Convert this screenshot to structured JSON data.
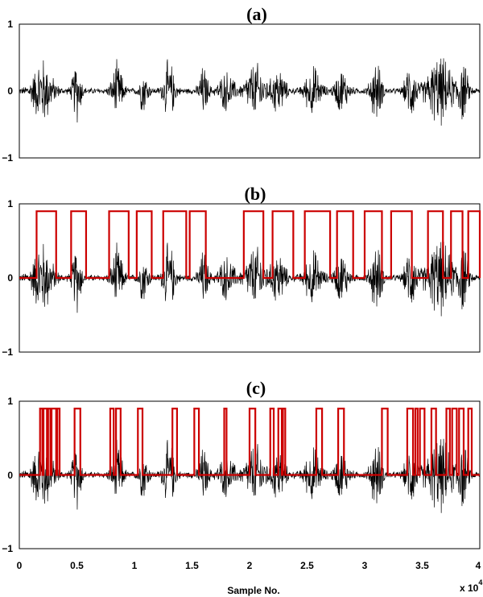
{
  "chart_data": [
    {
      "type": "line",
      "title": "(a)",
      "ylim": [
        -1,
        1
      ],
      "xlim": [
        0,
        40000
      ],
      "yticks": [
        -1,
        0,
        1
      ],
      "series": [
        {
          "color": "#000000",
          "kind": "audio-waveform",
          "noise_floor": 0.05,
          "bursts": [
            {
              "center": 2000,
              "width": 900,
              "amp": 0.55
            },
            {
              "center": 5000,
              "width": 400,
              "amp": 0.5
            },
            {
              "center": 8500,
              "width": 500,
              "amp": 0.45
            },
            {
              "center": 10800,
              "width": 400,
              "amp": 0.35
            },
            {
              "center": 13000,
              "width": 500,
              "amp": 0.5
            },
            {
              "center": 16000,
              "width": 400,
              "amp": 0.4
            },
            {
              "center": 18000,
              "width": 700,
              "amp": 0.3
            },
            {
              "center": 20500,
              "width": 900,
              "amp": 0.45
            },
            {
              "center": 22500,
              "width": 600,
              "amp": 0.4
            },
            {
              "center": 25500,
              "width": 700,
              "amp": 0.4
            },
            {
              "center": 28000,
              "width": 600,
              "amp": 0.35
            },
            {
              "center": 31000,
              "width": 500,
              "amp": 0.5
            },
            {
              "center": 34000,
              "width": 500,
              "amp": 0.45
            },
            {
              "center": 36500,
              "width": 1200,
              "amp": 0.55
            },
            {
              "center": 38500,
              "width": 500,
              "amp": 0.45
            }
          ]
        }
      ]
    },
    {
      "type": "line",
      "title": "(b)",
      "ylim": [
        -1,
        1
      ],
      "xlim": [
        0,
        40000
      ],
      "yticks": [
        -1,
        0,
        1
      ],
      "series": [
        {
          "color": "#000000",
          "kind": "audio-waveform",
          "same_as_panel": 0
        },
        {
          "color": "#cc0000",
          "kind": "binary-mask",
          "high": 0.9,
          "low": 0,
          "segments": [
            [
              1500,
              3200
            ],
            [
              4500,
              5800
            ],
            [
              7800,
              9500
            ],
            [
              10200,
              11500
            ],
            [
              12500,
              14500
            ],
            [
              14800,
              16200
            ],
            [
              19500,
              21200
            ],
            [
              22000,
              23800
            ],
            [
              24800,
              27000
            ],
            [
              27600,
              29000
            ],
            [
              30000,
              31500
            ],
            [
              32300,
              34100
            ],
            [
              35500,
              36800
            ],
            [
              37500,
              38500
            ],
            [
              39000,
              40000
            ]
          ]
        }
      ]
    },
    {
      "type": "line",
      "title": "(c)",
      "ylim": [
        -1,
        1
      ],
      "xlim": [
        0,
        40000
      ],
      "yticks": [
        -1,
        0,
        1
      ],
      "xticks": [
        0,
        5000,
        10000,
        15000,
        20000,
        25000,
        30000,
        35000,
        40000
      ],
      "xticklabels": [
        "0",
        "0.5",
        "1",
        "1.5",
        "2",
        "2.5",
        "3",
        "3.5",
        "4"
      ],
      "xlabel": "Sample No.",
      "x_multiplier": "x 10",
      "x_multiplier_exp": "4",
      "series": [
        {
          "color": "#000000",
          "kind": "audio-waveform",
          "same_as_panel": 0
        },
        {
          "color": "#cc0000",
          "kind": "binary-mask",
          "high": 0.9,
          "low": 0,
          "segments": [
            [
              1800,
              2000
            ],
            [
              2100,
              2400
            ],
            [
              2500,
              2700
            ],
            [
              2800,
              3200
            ],
            [
              3300,
              3500
            ],
            [
              4800,
              5300
            ],
            [
              7900,
              8200
            ],
            [
              8400,
              8800
            ],
            [
              10300,
              10700
            ],
            [
              13300,
              13700
            ],
            [
              15200,
              15600
            ],
            [
              17800,
              18000
            ],
            [
              20000,
              20500
            ],
            [
              21800,
              22100
            ],
            [
              22500,
              22800
            ],
            [
              22900,
              23100
            ],
            [
              25800,
              26300
            ],
            [
              27700,
              28200
            ],
            [
              31500,
              32000
            ],
            [
              33700,
              34200
            ],
            [
              34400,
              34600
            ],
            [
              34800,
              35200
            ],
            [
              35800,
              36200
            ],
            [
              37100,
              37400
            ],
            [
              37600,
              38000
            ],
            [
              38200,
              38600
            ],
            [
              39000,
              39300
            ]
          ]
        }
      ]
    }
  ]
}
